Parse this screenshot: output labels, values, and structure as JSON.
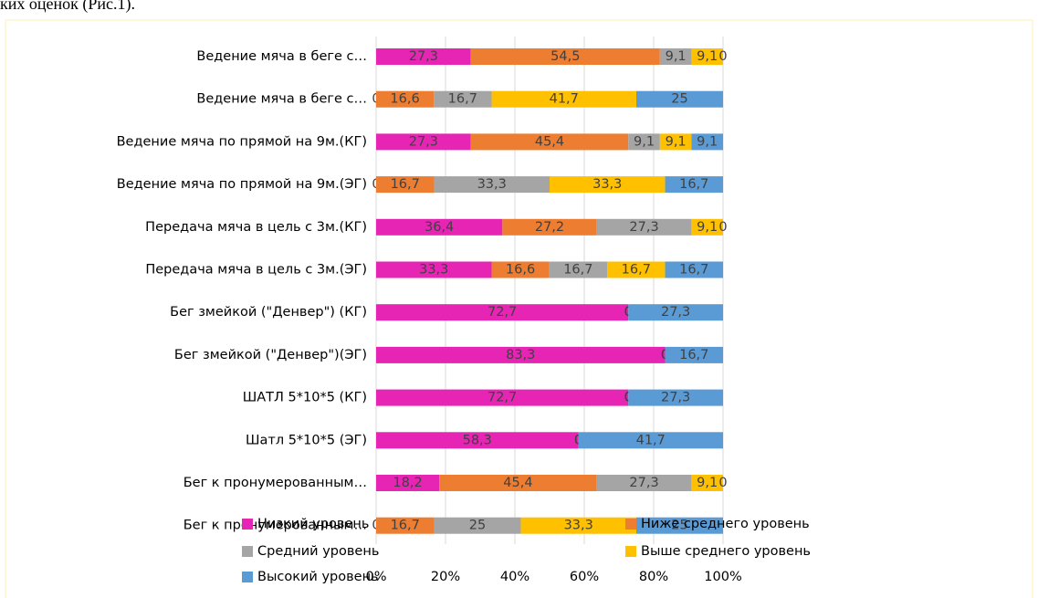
{
  "header_text": "ких оценок (Рис.1).",
  "chart_data": {
    "type": "stacked_bar_horizontal",
    "categories": [
      "Ведение мяча в беге с…",
      "Ведение мяча в беге с…",
      "Ведение мяча по прямой на 9м.(КГ)",
      "Ведение мяча по прямой на 9м.(ЭГ)",
      "Передача мяча в цель с 3м.(КГ)",
      "Передача мяча в цель с 3м.(ЭГ)",
      "Бег змейкой (\"Денвер\") (КГ)",
      "Бег змейкой (\"Денвер\")(ЭГ)",
      "ШАТЛ 5*10*5 (КГ)",
      "Шатл 5*10*5 (ЭГ)",
      "Бег к пронумерованным…",
      "Бег к пронумерованным…"
    ],
    "series": [
      {
        "name": "Низкий уровень",
        "color": "#e625b5",
        "values": [
          27.3,
          0,
          27.3,
          0,
          36.4,
          33.3,
          72.7,
          83.3,
          72.7,
          58.3,
          18.2,
          0
        ],
        "value_labels": [
          "27,3",
          "0",
          "27,3",
          "0",
          "36,4",
          "33,3",
          "72,7",
          "83,3",
          "72,7",
          "58,3",
          "18,2",
          "0"
        ]
      },
      {
        "name": "Ниже среднего уровень",
        "color": "#ed7d31",
        "values": [
          54.5,
          16.6,
          45.4,
          16.7,
          27.2,
          16.6,
          0,
          0,
          0,
          0,
          45.4,
          16.7
        ],
        "value_labels": [
          "54,5",
          "16,6",
          "45,4",
          "16,7",
          "27,2",
          "16,6",
          "0",
          "0",
          "0",
          "0",
          "45,4",
          "16,7"
        ]
      },
      {
        "name": "Средний уровень",
        "color": "#a5a5a5",
        "values": [
          9.1,
          16.7,
          9.1,
          33.3,
          27.3,
          16.7,
          0,
          0,
          0,
          0,
          27.3,
          25
        ],
        "value_labels": [
          "9,1",
          "16,7",
          "9,1",
          "33,3",
          "27,3",
          "16,7",
          "0",
          "0",
          "0",
          "0",
          "27,3",
          "25"
        ]
      },
      {
        "name": "Выше среднего уровень",
        "color": "#ffc000",
        "values": [
          9.1,
          41.7,
          9.1,
          33.3,
          9.1,
          16.7,
          0,
          0,
          0,
          0,
          9.1,
          33.3
        ],
        "value_labels": [
          "9,1",
          "41,7",
          "9,1",
          "33,3",
          "9,1",
          "16,7",
          "0",
          "0",
          "0",
          "0",
          "9,1",
          "33,3"
        ]
      },
      {
        "name": "Высокий уровень",
        "color": "#5b9bd5",
        "values": [
          0,
          25,
          9.1,
          16.7,
          0,
          16.7,
          27.3,
          16.7,
          27.3,
          41.7,
          0,
          25
        ],
        "value_labels": [
          "0",
          "25",
          "9,1",
          "16,7",
          "0",
          "16,7",
          "27,3",
          "16,7",
          "27,3",
          "41,7",
          "0",
          "25"
        ]
      }
    ],
    "xlim": [
      0,
      100
    ],
    "xticks": [
      {
        "value": 0,
        "label": "0%"
      },
      {
        "value": 20,
        "label": "20%"
      },
      {
        "value": 40,
        "label": "40%"
      },
      {
        "value": 60,
        "label": "60%"
      },
      {
        "value": 80,
        "label": "80%"
      },
      {
        "value": 100,
        "label": "100%"
      }
    ],
    "grid": true
  }
}
